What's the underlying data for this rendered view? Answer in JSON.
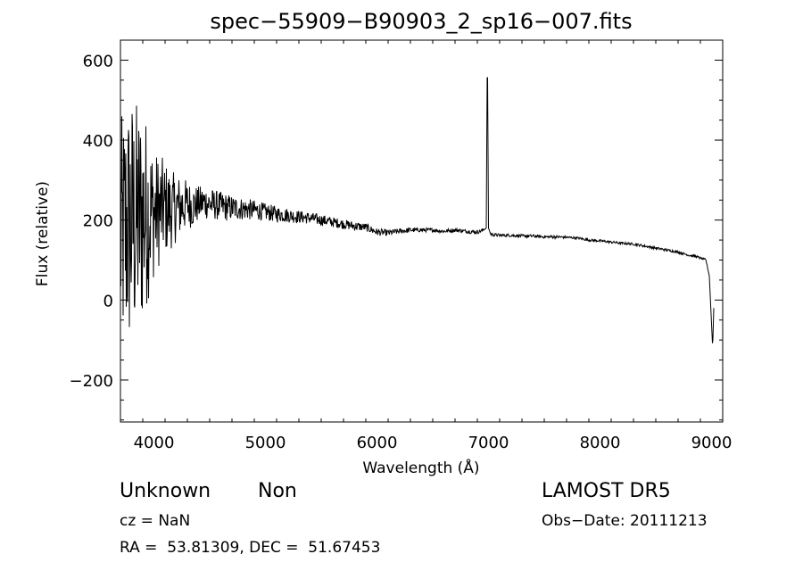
{
  "chart_data": {
    "type": "line",
    "title": "spec−55909−B90903_2_sp16−007.fits",
    "xlabel": "Wavelength (Å)",
    "ylabel": "Flux (relative)",
    "xlim": [
      3700,
      9100
    ],
    "ylim": [
      -305,
      650
    ],
    "x_ticks": [
      4000,
      5000,
      6000,
      7000,
      8000,
      9000
    ],
    "x_tick_labels": [
      "4000",
      "5000",
      "6000",
      "7000",
      "8000",
      "9000"
    ],
    "y_ticks": [
      -200,
      0,
      200,
      400,
      600
    ],
    "y_tick_labels": [
      "−200",
      "0",
      "200",
      "400",
      "600"
    ],
    "grid": false,
    "line_color": "#000000",
    "series": [
      {
        "x": [
          3700,
          3750,
          3800,
          3850,
          3900,
          3950,
          4000,
          4050,
          4100,
          4150,
          4200,
          4250,
          4300,
          4350,
          4400,
          4450,
          4500,
          4550,
          4600,
          4650,
          4700,
          4800,
          4900,
          5000,
          5100,
          5200,
          5300,
          5400,
          5500,
          5600,
          5700,
          5800,
          5900,
          6000,
          6100,
          6200,
          6300,
          6400,
          6500,
          6600,
          6700,
          6800,
          6900,
          6950,
          6980,
          6990,
          7000,
          7020,
          7050,
          7100,
          7200,
          7300,
          7400,
          7500,
          7600,
          7700,
          7800,
          7900,
          8000,
          8100,
          8200,
          8300,
          8400,
          8500,
          8600,
          8700,
          8800,
          8850,
          8900,
          8950,
          8980,
          9000,
          9010,
          9020
        ],
        "y": [
          150,
          180,
          190,
          200,
          210,
          220,
          215,
          225,
          230,
          225,
          230,
          235,
          240,
          235,
          240,
          245,
          240,
          238,
          235,
          232,
          230,
          228,
          225,
          220,
          215,
          212,
          208,
          205,
          200,
          195,
          190,
          185,
          182,
          170,
          168,
          172,
          175,
          175,
          175,
          172,
          175,
          172,
          170,
          175,
          180,
          650,
          180,
          165,
          163,
          162,
          162,
          160,
          160,
          158,
          158,
          157,
          155,
          150,
          148,
          145,
          142,
          140,
          135,
          130,
          125,
          120,
          112,
          110,
          105,
          100,
          60,
          -60,
          -120,
          -20
        ],
        "noise": [
          300,
          320,
          330,
          300,
          280,
          220,
          160,
          140,
          120,
          100,
          85,
          75,
          60,
          55,
          45,
          42,
          40,
          38,
          36,
          35,
          32,
          28,
          25,
          22,
          20,
          18,
          16,
          15,
          14,
          13,
          12,
          12,
          10,
          9,
          8,
          7,
          6,
          5,
          5,
          5,
          5,
          5,
          5,
          4,
          0,
          0,
          0,
          4,
          4,
          4,
          4,
          4,
          4,
          4,
          4,
          3,
          3,
          3,
          3,
          3,
          3,
          3,
          3,
          3,
          3,
          3,
          3,
          3,
          3,
          3,
          0,
          0,
          0,
          0
        ]
      }
    ]
  },
  "info": {
    "class": "Unknown",
    "subclass": "Non",
    "survey": "LAMOST DR5",
    "cz": "cz = NaN",
    "obs_date": "Obs−Date: 20111213",
    "ra_dec": "RA =  53.81309, DEC =  51.67453"
  }
}
